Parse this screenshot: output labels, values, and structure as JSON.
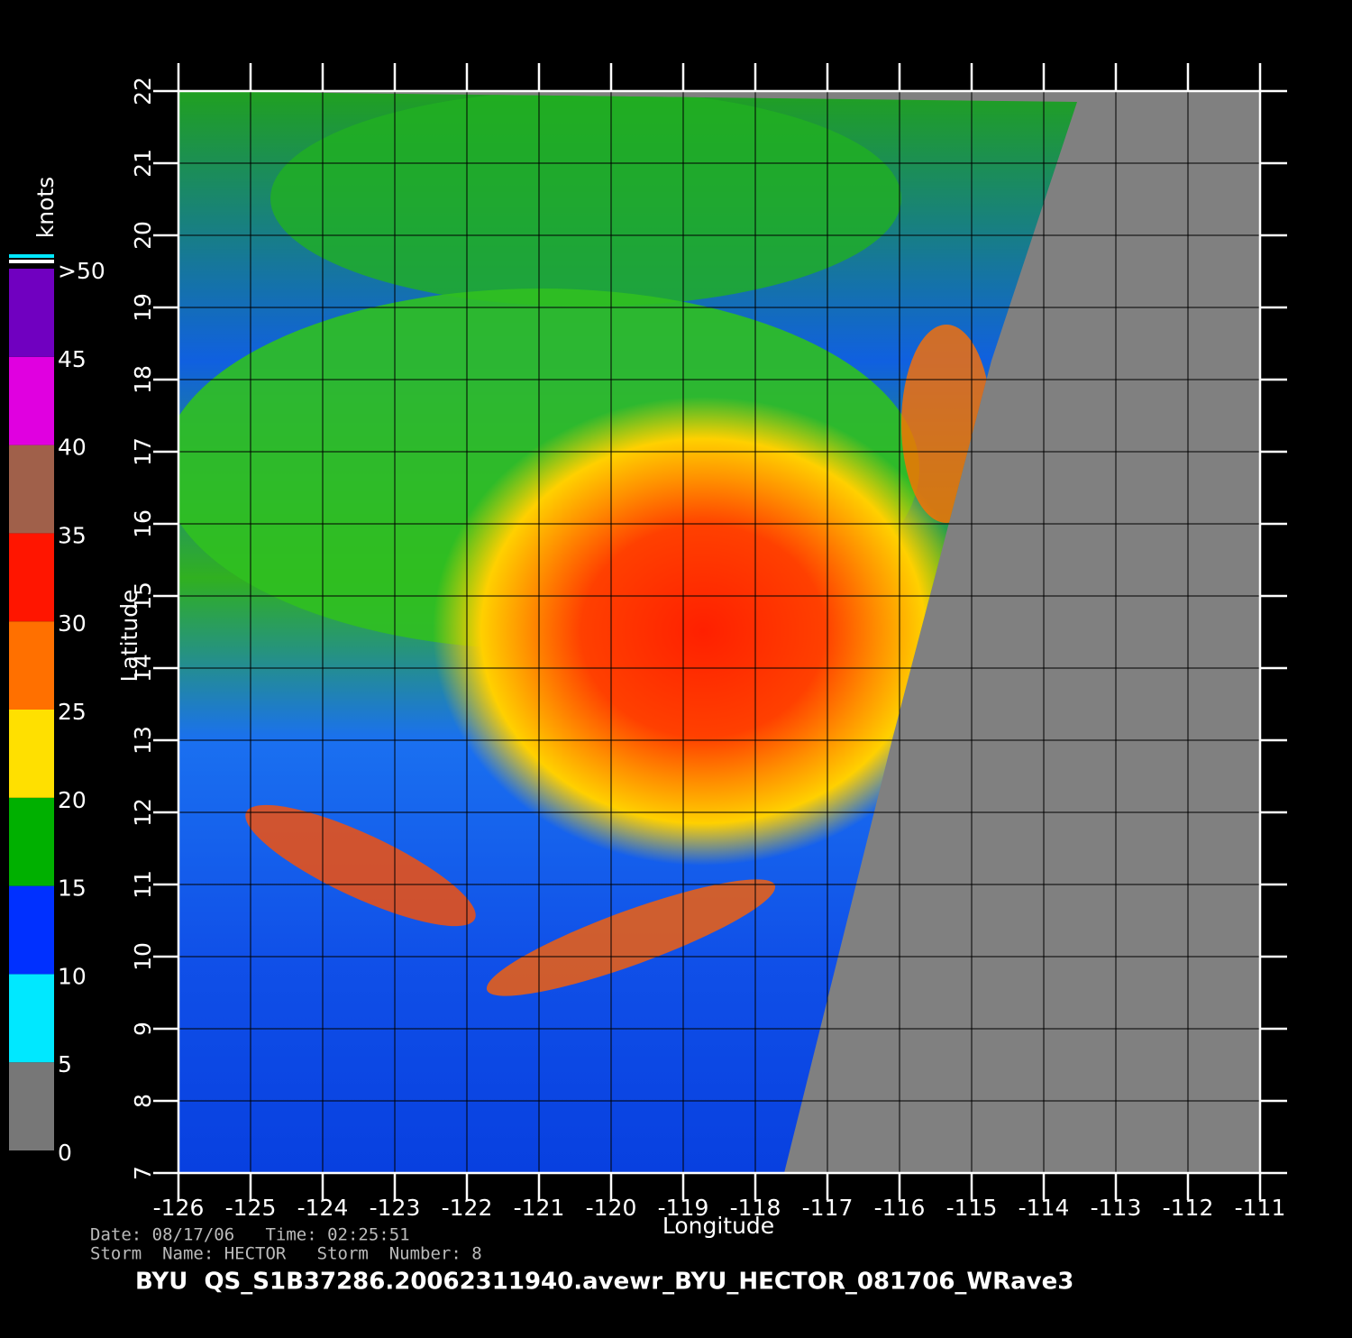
{
  "map": {
    "xlabel": "Longitude",
    "ylabel": "Latitude",
    "xlim": [
      -126,
      -111
    ],
    "ylim": [
      7,
      22
    ],
    "xticks": [
      -126,
      -125,
      -124,
      -123,
      -122,
      -121,
      -120,
      -119,
      -118,
      -117,
      -116,
      -115,
      -114,
      -113,
      -112,
      -111
    ],
    "yticks": [
      7,
      8,
      9,
      10,
      11,
      12,
      13,
      14,
      15,
      16,
      17,
      18,
      19,
      20,
      21,
      22
    ]
  },
  "colorbar": {
    "title": "knots",
    "lim": [
      0,
      50
    ],
    "ticks": [
      0,
      5,
      10,
      15,
      20,
      25,
      30,
      35,
      40,
      45,
      {
        "value": 50,
        "label": ">50"
      }
    ],
    "colors": [
      "#777777",
      "#00e8ff",
      "#0030ff",
      "#00b000",
      "#ffe000",
      "#ff7000",
      "#ff1500",
      "#a0604a",
      "#e000e0",
      "#7000c0"
    ]
  },
  "info": {
    "date": "Date: 08/17/06   Time: 02:25:51",
    "storm": "Storm  Name: HECTOR   Storm  Number: 8",
    "title": "BYU  QS_S1B37286.20062311940.avewr_BYU_HECTOR_081706_WRave3"
  }
}
